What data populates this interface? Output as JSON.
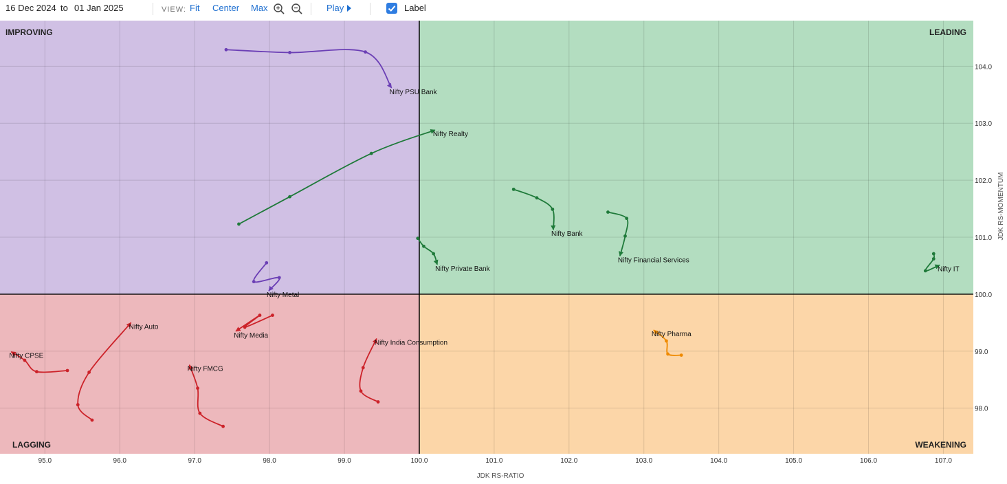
{
  "toolbar": {
    "date_from": "16  Dec  2024",
    "to_label": "to",
    "date_to": "01  Jan  2025",
    "view_label": "VIEW:",
    "fit_label": "Fit",
    "center_label": "Center",
    "max_label": "Max",
    "play_label": "Play",
    "label_toggle": "Label",
    "label_checked": true,
    "accent_color": "#2f7de1"
  },
  "chart_data": {
    "type": "scatter",
    "xlabel": "JDK RS-RATIO",
    "ylabel": "JDK RS-MOMENTUM",
    "xlim": [
      94.4,
      107.4
    ],
    "ylim": [
      97.2,
      104.8
    ],
    "center": [
      100,
      100
    ],
    "x_ticks": [
      "95.0",
      "96.0",
      "97.0",
      "98.0",
      "99.0",
      "100.0",
      "101.0",
      "102.0",
      "103.0",
      "104.0",
      "105.0",
      "106.0",
      "107.0"
    ],
    "y_ticks": [
      "98.0",
      "99.0",
      "100.0",
      "101.0",
      "102.0",
      "103.0",
      "104.0"
    ],
    "grid": true,
    "quadrants": [
      {
        "name": "IMPROVING",
        "position": "top-left",
        "color": "#d0c0e4"
      },
      {
        "name": "LEADING",
        "position": "top-right",
        "color": "#b3ddc0"
      },
      {
        "name": "LAGGING",
        "position": "bottom-left",
        "color": "#edb8bc"
      },
      {
        "name": "WEAKENING",
        "position": "bottom-right",
        "color": "#fcd6a8"
      }
    ],
    "series": [
      {
        "name": "Nifty PSU Bank",
        "color": "#6b3fb5",
        "x": [
          97.42,
          98.27,
          99.28,
          99.63
        ],
        "y": [
          104.29,
          104.24,
          104.25,
          103.62
        ]
      },
      {
        "name": "Nifty Realty",
        "color": "#1f7a3a",
        "x": [
          97.59,
          98.27,
          99.36,
          100.21
        ],
        "y": [
          101.23,
          101.71,
          102.47,
          102.88
        ]
      },
      {
        "name": "Nifty Bank",
        "color": "#1f7a3a",
        "x": [
          101.26,
          101.57,
          101.78,
          101.79
        ],
        "y": [
          101.84,
          101.69,
          101.49,
          101.13
        ]
      },
      {
        "name": "Nifty Financial Services",
        "color": "#1f7a3a",
        "x": [
          102.52,
          102.77,
          102.75,
          102.68
        ],
        "y": [
          101.44,
          101.33,
          101.02,
          100.67
        ]
      },
      {
        "name": "Nifty Private Bank",
        "color": "#1f7a3a",
        "x": [
          99.98,
          100.06,
          100.19,
          100.24
        ],
        "y": [
          100.98,
          100.84,
          100.71,
          100.52
        ]
      },
      {
        "name": "Nifty IT",
        "color": "#1f7a3a",
        "x": [
          106.87,
          106.87,
          106.76,
          106.95
        ],
        "y": [
          100.71,
          100.62,
          100.41,
          100.51
        ]
      },
      {
        "name": "Nifty Metal",
        "color": "#6b3fb5",
        "x": [
          97.96,
          97.79,
          98.13,
          97.99
        ],
        "y": [
          100.55,
          100.22,
          100.29,
          100.06
        ]
      },
      {
        "name": "Nifty Media",
        "color": "#cc2229",
        "x": [
          98.04,
          97.67,
          97.87,
          97.55
        ],
        "y": [
          99.63,
          99.42,
          99.63,
          99.35
        ]
      },
      {
        "name": "Nifty Auto",
        "color": "#cc2229",
        "x": [
          95.63,
          95.44,
          95.59,
          96.15
        ],
        "y": [
          97.79,
          98.06,
          98.63,
          99.5
        ]
      },
      {
        "name": "Nifty CPSE",
        "color": "#cc2229",
        "x": [
          95.3,
          94.89,
          94.73,
          94.55
        ],
        "y": [
          98.66,
          98.64,
          98.84,
          98.99
        ]
      },
      {
        "name": "Nifty FMCG",
        "color": "#cc2229",
        "x": [
          97.38,
          97.07,
          97.04,
          96.93
        ],
        "y": [
          97.68,
          97.91,
          98.35,
          98.76
        ]
      },
      {
        "name": "Nifty India Consumption",
        "color": "#cc2229",
        "x": [
          99.45,
          99.22,
          99.25,
          99.43
        ],
        "y": [
          98.11,
          98.3,
          98.71,
          99.22
        ]
      },
      {
        "name": "Nifty Pharma",
        "color": "#ef8a00",
        "x": [
          103.5,
          103.32,
          103.3,
          103.13
        ],
        "y": [
          98.93,
          98.95,
          99.18,
          99.37
        ]
      }
    ]
  }
}
